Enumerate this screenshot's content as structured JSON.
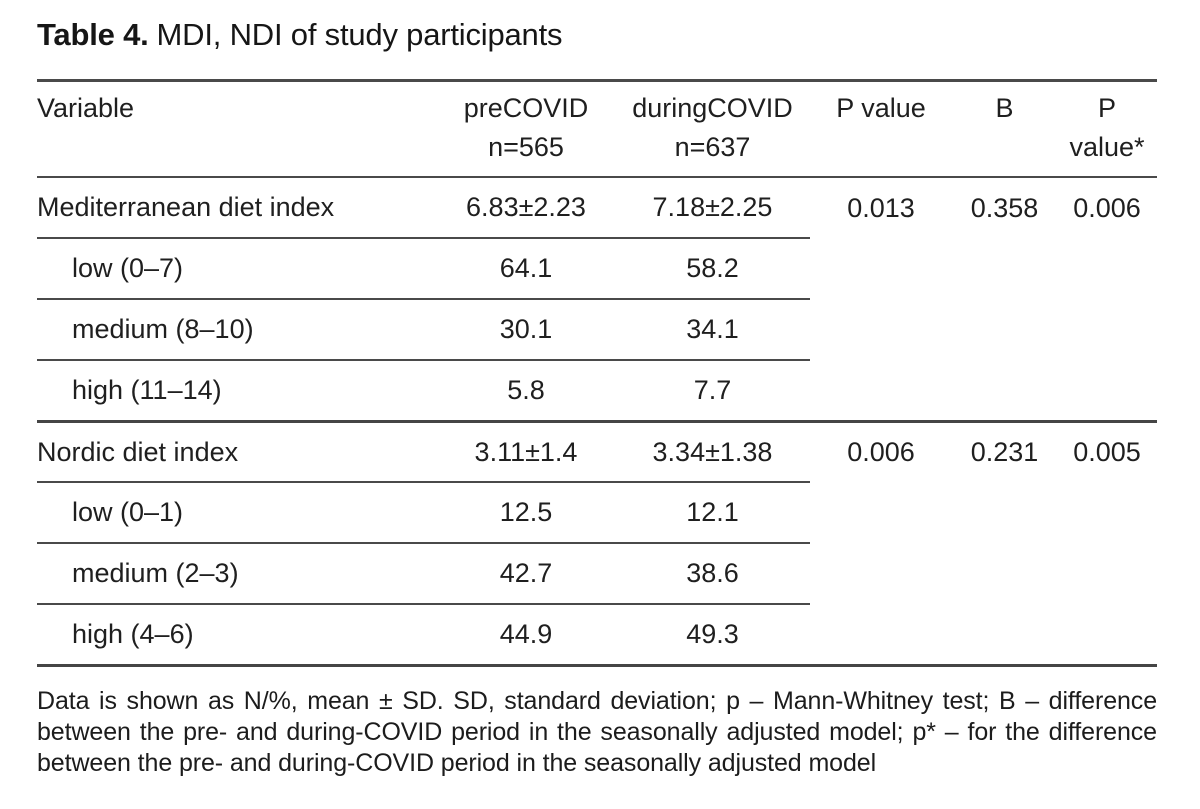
{
  "title": {
    "label": "Table 4.",
    "text": "MDI, NDI of study participants"
  },
  "table": {
    "header": {
      "variable": "Variable",
      "precovid_line1": "preCOVID",
      "precovid_line2": "n=565",
      "duringcovid_line1": "duringCOVID",
      "duringcovid_line2": "n=637",
      "pvalue": "P value",
      "b": "B",
      "pstar_line1": "P",
      "pstar_line2": "value*"
    },
    "rows": [
      {
        "variable": "Mediterranean diet index",
        "precovid": "6.83±2.23",
        "duringcovid": "7.18±2.25",
        "pvalue": "0.013",
        "b": "0.358",
        "pstar": "0.006"
      },
      {
        "variable": "low (0–7)",
        "precovid": "64.1",
        "duringcovid": "58.2",
        "pvalue": "",
        "b": "",
        "pstar": ""
      },
      {
        "variable": "medium (8–10)",
        "precovid": "30.1",
        "duringcovid": "34.1",
        "pvalue": "",
        "b": "",
        "pstar": ""
      },
      {
        "variable": "high (11–14)",
        "precovid": "5.8",
        "duringcovid": "7.7",
        "pvalue": "",
        "b": "",
        "pstar": ""
      },
      {
        "variable": "Nordic diet index",
        "precovid": "3.11±1.4",
        "duringcovid": "3.34±1.38",
        "pvalue": "0.006",
        "b": "0.231",
        "pstar": "0.005"
      },
      {
        "variable": "low (0–1)",
        "precovid": "12.5",
        "duringcovid": "12.1",
        "pvalue": "",
        "b": "",
        "pstar": ""
      },
      {
        "variable": "medium (2–3)",
        "precovid": "42.7",
        "duringcovid": "38.6",
        "pvalue": "",
        "b": "",
        "pstar": ""
      },
      {
        "variable": "high (4–6)",
        "precovid": "44.9",
        "duringcovid": "49.3",
        "pvalue": "",
        "b": "",
        "pstar": ""
      }
    ],
    "footnote": "Data is shown as N/%, mean ± SD. SD, standard deviation; p – Mann-Whitney test; B – difference between the pre- and during-COVID period in the seasonally adjusted model; p* – for the difference between the pre- and during-COVID period in the seasonally adjusted model"
  }
}
